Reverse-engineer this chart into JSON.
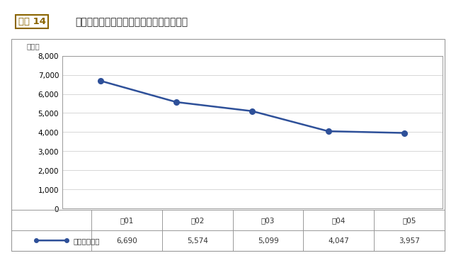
{
  "title": "ヤミ金融事犯に関する相談受理件数の推移",
  "figure_label": "図表 14",
  "ylabel": "（件）",
  "categories": [
    "令01",
    "令02",
    "令03",
    "令04",
    "令05"
  ],
  "values": [
    6690,
    5574,
    5099,
    4047,
    3957
  ],
  "table_values": [
    "6,690",
    "5,574",
    "5,099",
    "4,047",
    "3,957"
  ],
  "legend_label": "相談受理件数",
  "line_color": "#2e5099",
  "marker_color": "#2e5099",
  "ylim": [
    0,
    8000
  ],
  "yticks": [
    0,
    1000,
    2000,
    3000,
    4000,
    5000,
    6000,
    7000,
    8000
  ],
  "ytick_labels": [
    "0",
    "1,000",
    "2,000",
    "3,000",
    "4,000",
    "5,000",
    "6,000",
    "7,000",
    "8,000"
  ],
  "bg_color": "#ffffff",
  "plot_bg_color": "#ffffff",
  "grid_color": "#c8c8c8",
  "border_color": "#999999",
  "title_color": "#222222",
  "figure_label_color": "#8b6500",
  "figure_label_box_color": "#8b6500",
  "table_text_color": "#333333",
  "ylabel_color": "#555555"
}
